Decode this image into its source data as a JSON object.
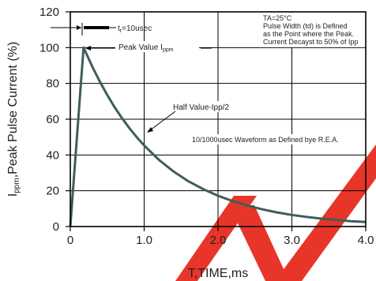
{
  "chart_data": {
    "type": "line",
    "title": "",
    "xlabel": "T,TIME,ms",
    "ylabel_main": "I",
    "ylabel_sub": "ppm",
    "ylabel_rest": ",Peak Pulse Current (%)",
    "xlim": [
      0,
      4.0
    ],
    "ylim": [
      0,
      120
    ],
    "x_ticks": [
      0,
      1.0,
      2.0,
      3.0,
      4.0
    ],
    "x_tick_labels": [
      "0",
      "1.0",
      "2.0",
      "3.0",
      "4.0"
    ],
    "y_ticks": [
      0,
      20,
      40,
      60,
      80,
      100,
      120
    ],
    "y_tick_labels": [
      "0",
      "20",
      "40",
      "60",
      "80",
      "100",
      "120"
    ],
    "grid": true,
    "series": [
      {
        "color": "#3d5e5a",
        "x": [
          0,
          0.18,
          0.3,
          0.4,
          0.5,
          0.6,
          0.7,
          0.8,
          0.9,
          1.0,
          1.2,
          1.4,
          1.6,
          1.8,
          2.0,
          2.2,
          2.4,
          2.6,
          2.8,
          3.0,
          3.2,
          3.4,
          3.6,
          3.8,
          4.0
        ],
        "y": [
          0,
          100,
          89.2,
          81.0,
          73.5,
          66.7,
          60.6,
          55.0,
          49.9,
          45.3,
          37.3,
          30.7,
          25.3,
          20.9,
          17.2,
          14.2,
          11.7,
          9.6,
          7.9,
          6.5,
          5.4,
          4.4,
          3.7,
          3.0,
          2.5
        ]
      }
    ],
    "annotations": {
      "tr_main": "t",
      "tr_sub": "r",
      "tr_rest": "=10usec",
      "peak_main": "Peak  Value  I",
      "peak_sub": "ppm",
      "half_value": "Half Value-Ipp/2",
      "waveform": "10/1000usec  Waveform as Defined bye R.E.A.",
      "note_lines": [
        "TA=25°C",
        "Pulse   Width (td) is  Defined",
        "as the Point  where the Peak.",
        "Current  Decayst to 50% of Ipp"
      ]
    }
  },
  "colors": {
    "curve": "#3d5e5a",
    "grid": "#000000",
    "watermark": "#e8352a"
  }
}
